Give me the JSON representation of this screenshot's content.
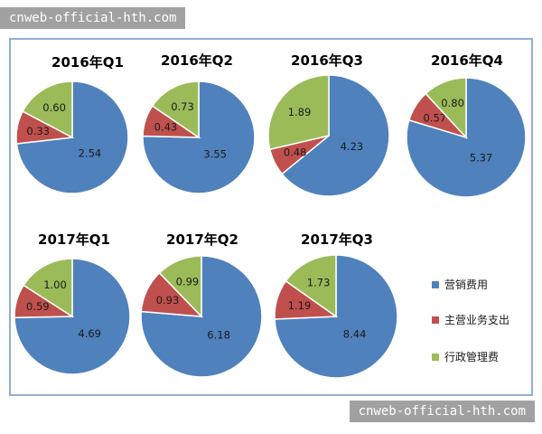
{
  "watermark_top": "cnweb-official-hth.com",
  "watermark_bottom": "cnweb-official-hth.com",
  "chart_data": {
    "type": "pie",
    "series_names": [
      "营销费用",
      "主营业务支出",
      "行政管理费"
    ],
    "colors": [
      "#4f81bd",
      "#c0504d",
      "#9bbb59"
    ],
    "charts": [
      {
        "title": "2016年Q1",
        "values": [
          2.54,
          0.33,
          0.6
        ]
      },
      {
        "title": "2016年Q2",
        "values": [
          3.55,
          0.43,
          0.73
        ]
      },
      {
        "title": "2016年Q3",
        "values": [
          4.23,
          0.48,
          1.89
        ]
      },
      {
        "title": "2016年Q4",
        "values": [
          5.37,
          0.57,
          0.8
        ]
      },
      {
        "title": "2017年Q1",
        "values": [
          4.69,
          0.59,
          1.0
        ]
      },
      {
        "title": "2017年Q2",
        "values": [
          6.18,
          0.93,
          0.99
        ]
      },
      {
        "title": "2017年Q3",
        "values": [
          8.44,
          1.19,
          1.73
        ]
      }
    ],
    "legend": {
      "position": "right",
      "entries": [
        "营销费用",
        "主营业务支出",
        "行政管理费"
      ]
    }
  }
}
